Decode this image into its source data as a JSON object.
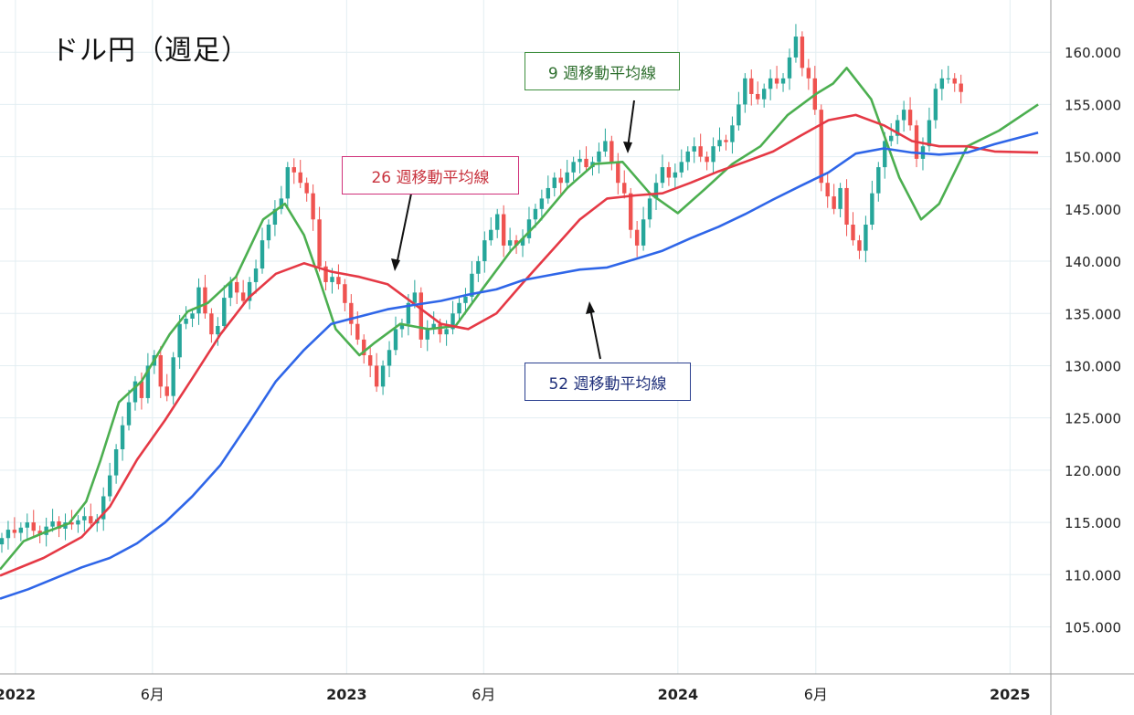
{
  "title": "ドル円（週足）",
  "labels": {
    "ma9": "9 週移動平均線",
    "ma26": "26 週移動平均線",
    "ma52": "52 週移動平均線"
  },
  "colors": {
    "up": "#26a69a",
    "down": "#ef5350",
    "ma9": "#4caf50",
    "ma26": "#e53945",
    "ma52": "#2f66e8",
    "grid": "#e3eef2"
  },
  "chart_data": {
    "type": "line",
    "title": "ドル円（週足）",
    "x_time_range": [
      "2021-12-15",
      "2025-02-15"
    ],
    "ylim": [
      100.5,
      165
    ],
    "y_ticks": [
      "160.000",
      "155.000",
      "150.000",
      "145.000",
      "140.000",
      "135.000",
      "130.000",
      "125.000",
      "120.000",
      "115.000",
      "110.000",
      "105.000"
    ],
    "y_tick_values": [
      160,
      155,
      150,
      145,
      140,
      135,
      130,
      125,
      120,
      115,
      110,
      105
    ],
    "x_ticks": [
      {
        "label": "2022",
        "date": "2022-01-01",
        "bold": true
      },
      {
        "label": "6月",
        "date": "2022-06-01",
        "bold": false
      },
      {
        "label": "2023",
        "date": "2023-01-01",
        "bold": true
      },
      {
        "label": "6月",
        "date": "2023-06-01",
        "bold": false
      },
      {
        "label": "2024",
        "date": "2024-01-01",
        "bold": true
      },
      {
        "label": "6月",
        "date": "2024-06-01",
        "bold": false
      },
      {
        "label": "2025",
        "date": "2025-01-01",
        "bold": true
      }
    ],
    "candles_close_weekly": [
      113.5,
      114.3,
      114.0,
      114.5,
      115.0,
      114.2,
      113.8,
      114.6,
      115.1,
      114.4,
      115.0,
      114.8,
      115.2,
      115.6,
      114.9,
      115.3,
      117.5,
      119.5,
      122.0,
      124.3,
      126.5,
      128.5,
      126.9,
      130.0,
      131.0,
      128.0,
      127.1,
      130.8,
      134.0,
      134.5,
      135.0,
      137.5,
      135.0,
      133.0,
      133.8,
      136.5,
      138.0,
      137.0,
      136.2,
      138.0,
      139.3,
      142.0,
      143.5,
      145.0,
      146.0,
      149.0,
      148.5,
      147.5,
      146.5,
      144.0,
      139.5,
      138.0,
      138.5,
      137.8,
      136.0,
      134.0,
      132.5,
      131.0,
      130.0,
      128.0,
      130.0,
      131.5,
      133.5,
      134.0,
      136.0,
      137.0,
      132.5,
      133.5,
      134.0,
      133.0,
      133.5,
      135.0,
      136.0,
      136.6,
      138.8,
      140.0,
      142.0,
      143.0,
      144.5,
      141.5,
      142.0,
      141.5,
      142.2,
      144.0,
      145.0,
      146.0,
      147.0,
      148.0,
      147.5,
      148.5,
      149.5,
      149.8,
      149.0,
      149.5,
      150.5,
      151.5,
      149.5,
      147.5,
      146.5,
      143.0,
      141.5,
      144.0,
      146.0,
      147.5,
      149.0,
      148.0,
      148.5,
      149.5,
      150.5,
      151.0,
      150.0,
      149.5,
      151.0,
      151.6,
      151.4,
      153.0,
      155.0,
      157.5,
      156.0,
      155.5,
      156.5,
      157.5,
      157.0,
      157.5,
      159.5,
      161.5,
      158.5,
      157.5,
      154.5,
      147.5,
      146.2,
      145.0,
      147.0,
      143.5,
      142.0,
      141.0,
      143.5,
      146.5,
      149.0,
      151.5,
      152.0,
      153.5,
      154.5,
      153.0,
      149.8,
      151.0,
      153.5,
      156.5,
      157.5,
      157.5,
      157.0,
      156.2
    ],
    "series": [
      {
        "name": "9 週移動平均線",
        "points": [
          [
            "2021-12-15",
            110.5
          ],
          [
            "2022-01-10",
            113.2
          ],
          [
            "2022-02-01",
            114.0
          ],
          [
            "2022-03-01",
            114.9
          ],
          [
            "2022-03-20",
            117.0
          ],
          [
            "2022-04-05",
            121.0
          ],
          [
            "2022-04-25",
            126.5
          ],
          [
            "2022-05-20",
            128.5
          ],
          [
            "2022-06-20",
            133.0
          ],
          [
            "2022-07-10",
            135.2
          ],
          [
            "2022-08-01",
            136.0
          ],
          [
            "2022-09-01",
            138.5
          ],
          [
            "2022-10-01",
            144.0
          ],
          [
            "2022-10-25",
            145.5
          ],
          [
            "2022-11-15",
            142.5
          ],
          [
            "2022-12-01",
            138.5
          ],
          [
            "2022-12-20",
            133.5
          ],
          [
            "2023-01-15",
            131.0
          ],
          [
            "2023-02-01",
            132.2
          ],
          [
            "2023-03-01",
            134.0
          ],
          [
            "2023-04-01",
            133.5
          ],
          [
            "2023-05-01",
            133.8
          ],
          [
            "2023-06-01",
            137.5
          ],
          [
            "2023-07-01",
            141.0
          ],
          [
            "2023-08-01",
            143.8
          ],
          [
            "2023-09-01",
            147.0
          ],
          [
            "2023-10-01",
            149.3
          ],
          [
            "2023-11-01",
            149.5
          ],
          [
            "2023-12-01",
            146.5
          ],
          [
            "2024-01-01",
            144.6
          ],
          [
            "2024-02-01",
            147.0
          ],
          [
            "2024-03-01",
            149.3
          ],
          [
            "2024-04-01",
            151.0
          ],
          [
            "2024-05-01",
            154.0
          ],
          [
            "2024-06-01",
            156.0
          ],
          [
            "2024-06-20",
            157.0
          ],
          [
            "2024-07-05",
            158.5
          ],
          [
            "2024-08-01",
            155.5
          ],
          [
            "2024-09-01",
            148.0
          ],
          [
            "2024-09-25",
            144.0
          ],
          [
            "2024-10-15",
            145.5
          ],
          [
            "2024-11-15",
            151.0
          ],
          [
            "2024-12-20",
            152.5
          ],
          [
            "2025-02-01",
            155.0
          ]
        ]
      },
      {
        "name": "26 週移動平均線",
        "points": [
          [
            "2021-12-15",
            109.9
          ],
          [
            "2022-02-01",
            111.6
          ],
          [
            "2022-03-15",
            113.6
          ],
          [
            "2022-04-15",
            116.5
          ],
          [
            "2022-05-15",
            121.0
          ],
          [
            "2022-06-15",
            124.8
          ],
          [
            "2022-07-15",
            128.8
          ],
          [
            "2022-08-15",
            133.0
          ],
          [
            "2022-09-15",
            136.5
          ],
          [
            "2022-10-15",
            138.8
          ],
          [
            "2022-11-15",
            139.8
          ],
          [
            "2022-12-15",
            139.0
          ],
          [
            "2023-01-15",
            138.5
          ],
          [
            "2023-02-15",
            137.8
          ],
          [
            "2023-03-15",
            136.0
          ],
          [
            "2023-04-15",
            134.0
          ],
          [
            "2023-05-15",
            133.5
          ],
          [
            "2023-06-15",
            135.0
          ],
          [
            "2023-07-15",
            138.0
          ],
          [
            "2023-08-15",
            141.0
          ],
          [
            "2023-09-15",
            144.0
          ],
          [
            "2023-10-15",
            146.0
          ],
          [
            "2023-11-15",
            146.3
          ],
          [
            "2023-12-15",
            146.5
          ],
          [
            "2024-01-15",
            147.5
          ],
          [
            "2024-02-15",
            148.6
          ],
          [
            "2024-03-15",
            149.5
          ],
          [
            "2024-04-15",
            150.5
          ],
          [
            "2024-05-15",
            152.0
          ],
          [
            "2024-06-15",
            153.5
          ],
          [
            "2024-07-15",
            154.0
          ],
          [
            "2024-08-15",
            153.0
          ],
          [
            "2024-09-15",
            151.5
          ],
          [
            "2024-10-15",
            151.0
          ],
          [
            "2024-11-15",
            151.0
          ],
          [
            "2024-12-15",
            150.5
          ],
          [
            "2025-02-01",
            150.4
          ]
        ]
      },
      {
        "name": "52 週移動平均線",
        "points": [
          [
            "2021-12-15",
            107.7
          ],
          [
            "2022-01-15",
            108.6
          ],
          [
            "2022-02-15",
            109.7
          ],
          [
            "2022-03-15",
            110.7
          ],
          [
            "2022-04-15",
            111.6
          ],
          [
            "2022-05-15",
            113.0
          ],
          [
            "2022-06-15",
            115.0
          ],
          [
            "2022-07-15",
            117.5
          ],
          [
            "2022-08-15",
            120.5
          ],
          [
            "2022-09-15",
            124.5
          ],
          [
            "2022-10-15",
            128.5
          ],
          [
            "2022-11-15",
            131.5
          ],
          [
            "2022-12-15",
            134.0
          ],
          [
            "2023-01-15",
            134.7
          ],
          [
            "2023-02-15",
            135.4
          ],
          [
            "2023-03-15",
            135.8
          ],
          [
            "2023-04-15",
            136.2
          ],
          [
            "2023-05-15",
            136.8
          ],
          [
            "2023-06-15",
            137.3
          ],
          [
            "2023-07-15",
            138.2
          ],
          [
            "2023-08-15",
            138.7
          ],
          [
            "2023-09-15",
            139.2
          ],
          [
            "2023-10-15",
            139.4
          ],
          [
            "2023-11-15",
            140.2
          ],
          [
            "2023-12-15",
            141.0
          ],
          [
            "2024-01-15",
            142.2
          ],
          [
            "2024-02-15",
            143.3
          ],
          [
            "2024-03-15",
            144.5
          ],
          [
            "2024-04-15",
            145.9
          ],
          [
            "2024-05-15",
            147.2
          ],
          [
            "2024-06-15",
            148.5
          ],
          [
            "2024-07-15",
            150.3
          ],
          [
            "2024-08-15",
            150.8
          ],
          [
            "2024-09-15",
            150.4
          ],
          [
            "2024-10-15",
            150.2
          ],
          [
            "2024-11-15",
            150.4
          ],
          [
            "2024-12-15",
            151.2
          ],
          [
            "2025-02-01",
            152.3
          ]
        ]
      }
    ]
  }
}
